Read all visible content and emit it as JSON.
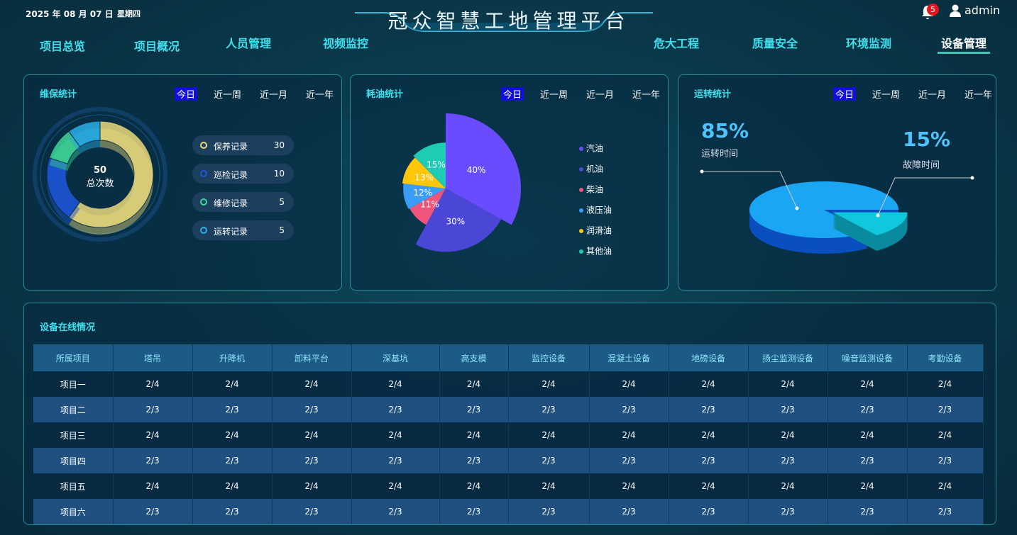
{
  "header": {
    "date": "2025 年 08 月 07 日",
    "weekday": "星期四",
    "title": "冠众智慧工地管理平台",
    "notifications": 5,
    "user": "admin"
  },
  "nav": {
    "left": [
      "项目总览",
      "项目概况",
      "人员管理",
      "视频监控"
    ],
    "right": [
      "危大工程",
      "质量安全",
      "环境监测",
      "设备管理"
    ]
  },
  "maintenance": {
    "title": "维保统计",
    "tabs": [
      "今日",
      "近一周",
      "近一月",
      "近一年"
    ],
    "total": 50,
    "total_label": "总次数",
    "type": "donut",
    "categories": [
      "保养记录",
      "巡检记录",
      "维修记录",
      "运转记录"
    ],
    "values": [
      30,
      10,
      5,
      5
    ],
    "colors": [
      "#e9d97c",
      "#1f56d6",
      "#3fd597",
      "#2bb0e6"
    ]
  },
  "fuel": {
    "title": "耗油统计",
    "tabs": [
      "今日",
      "近一周",
      "近一月",
      "近一年"
    ],
    "type": "rose-pie",
    "categories": [
      "汽油",
      "机油",
      "柴油",
      "液压油",
      "润滑油",
      "其他油"
    ],
    "values": [
      40,
      30,
      11,
      12,
      13,
      15
    ],
    "value_labels": [
      "40%",
      "30%",
      "11%",
      "12%",
      "13%",
      "15%"
    ],
    "colors": [
      "#6a4cff",
      "#4a47d6",
      "#f0567c",
      "#3a9ef6",
      "#ffc60a",
      "#1fcbb5"
    ]
  },
  "operation": {
    "title": "运转统计",
    "tabs": [
      "今日",
      "近一周",
      "近一月",
      "近一年"
    ],
    "type": "pie3d",
    "categories": [
      "运转时间",
      "故障时间"
    ],
    "values": [
      85,
      15
    ],
    "value_labels": [
      "85%",
      "15%"
    ],
    "colors": [
      "#1aa6f2",
      "#10c8de"
    ]
  },
  "equipment": {
    "title": "设备在线情况",
    "columns": [
      "所属项目",
      "塔吊",
      "升降机",
      "卸料平台",
      "深基坑",
      "高支模",
      "监控设备",
      "混凝土设备",
      "地磅设备",
      "扬尘监测设备",
      "噪音监测设备",
      "考勤设备"
    ],
    "rows": [
      [
        "项目一",
        "2/4",
        "2/4",
        "2/4",
        "2/4",
        "2/4",
        "2/4",
        "2/4",
        "2/4",
        "2/4",
        "2/4",
        "2/4"
      ],
      [
        "项目二",
        "2/3",
        "2/3",
        "2/3",
        "2/3",
        "2/3",
        "2/3",
        "2/3",
        "2/3",
        "2/3",
        "2/3",
        "2/3"
      ],
      [
        "项目三",
        "2/4",
        "2/4",
        "2/4",
        "2/4",
        "2/4",
        "2/4",
        "2/4",
        "2/4",
        "2/4",
        "2/4",
        "2/4"
      ],
      [
        "项目四",
        "2/3",
        "2/3",
        "2/3",
        "2/3",
        "2/3",
        "2/3",
        "2/3",
        "2/3",
        "2/3",
        "2/3",
        "2/3"
      ],
      [
        "项目五",
        "2/4",
        "2/4",
        "2/4",
        "2/4",
        "2/4",
        "2/4",
        "2/4",
        "2/4",
        "2/4",
        "2/4",
        "2/4"
      ],
      [
        "项目六",
        "2/3",
        "2/3",
        "2/3",
        "2/3",
        "2/3",
        "2/3",
        "2/3",
        "2/3",
        "2/3",
        "2/3",
        "2/3"
      ]
    ]
  }
}
